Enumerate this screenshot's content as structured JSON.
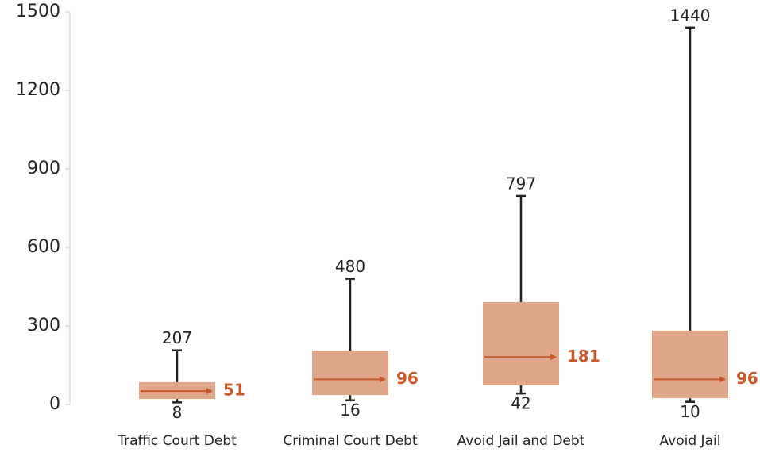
{
  "chart_data": {
    "type": "box",
    "boxes": [
      {
        "category": "Traffic Court Debt",
        "min": 8,
        "q1": 21,
        "median": 51,
        "q3": 85,
        "max": 207
      },
      {
        "category": "Criminal Court Debt",
        "min": 16,
        "q1": 36,
        "median": 96,
        "q3": 206,
        "max": 480
      },
      {
        "category": "Avoid Jail and Debt",
        "min": 42,
        "q1": 73,
        "median": 181,
        "q3": 391,
        "max": 797
      },
      {
        "category": "Avoid Jail",
        "min": 10,
        "q1": 24,
        "median": 96,
        "q3": 282,
        "max": 1440
      }
    ],
    "box_color": "#dfa68a",
    "median_color": "#c8582a",
    "whisker_color": "#222222",
    "ylim": [
      0,
      1500
    ],
    "yticks": [
      0,
      300,
      600,
      900,
      1200,
      1500
    ]
  }
}
